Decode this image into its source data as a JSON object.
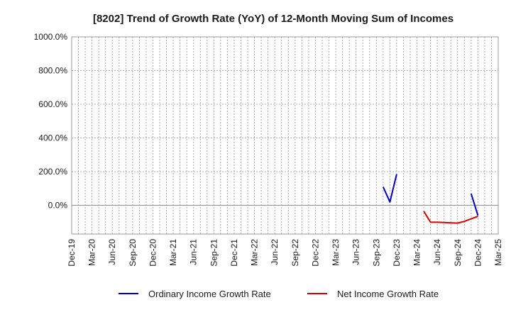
{
  "chart_data": {
    "type": "line",
    "title": "[8202]  Trend of Growth Rate (YoY) of 12-Month Moving Sum of Incomes",
    "xlabel": "",
    "ylabel": "",
    "ylim": [
      -170,
      1000
    ],
    "yticks": [
      0,
      200,
      400,
      600,
      800,
      1000
    ],
    "ytick_labels": [
      "0.0%",
      "200.0%",
      "400.0%",
      "600.0%",
      "800.0%",
      "1000.0%"
    ],
    "x_start": "Dec-19",
    "x_end": "Mar-25",
    "xtick_labels": [
      "Dec-19",
      "Mar-20",
      "Jun-20",
      "Sep-20",
      "Dec-20",
      "Mar-21",
      "Jun-21",
      "Sep-21",
      "Dec-21",
      "Mar-22",
      "Jun-22",
      "Sep-22",
      "Dec-22",
      "Mar-23",
      "Jun-23",
      "Sep-23",
      "Dec-23",
      "Mar-24",
      "Jun-24",
      "Sep-24",
      "Dec-24",
      "Mar-25"
    ],
    "grid": true,
    "legend_position": "bottom",
    "series": [
      {
        "name": "Ordinary Income Growth Rate",
        "color": "#0000cc",
        "points": [
          {
            "x": "Oct-23",
            "y": 110
          },
          {
            "x": "Nov-23",
            "y": 20
          },
          {
            "x": "Dec-23",
            "y": 185
          },
          {
            "x": null,
            "y": null
          },
          {
            "x": "Nov-24",
            "y": 70
          },
          {
            "x": "Dec-24",
            "y": -60
          }
        ]
      },
      {
        "name": "Net Income Growth Rate",
        "color": "#dd0000",
        "points": [
          {
            "x": "Apr-24",
            "y": -35
          },
          {
            "x": "May-24",
            "y": -100
          },
          {
            "x": "Jun-24",
            "y": -100
          },
          {
            "x": "Jul-24",
            "y": -102
          },
          {
            "x": "Aug-24",
            "y": -104
          },
          {
            "x": "Sep-24",
            "y": -105
          },
          {
            "x": "Oct-24",
            "y": -95
          },
          {
            "x": "Nov-24",
            "y": -80
          },
          {
            "x": "Dec-24",
            "y": -65
          }
        ]
      }
    ]
  }
}
